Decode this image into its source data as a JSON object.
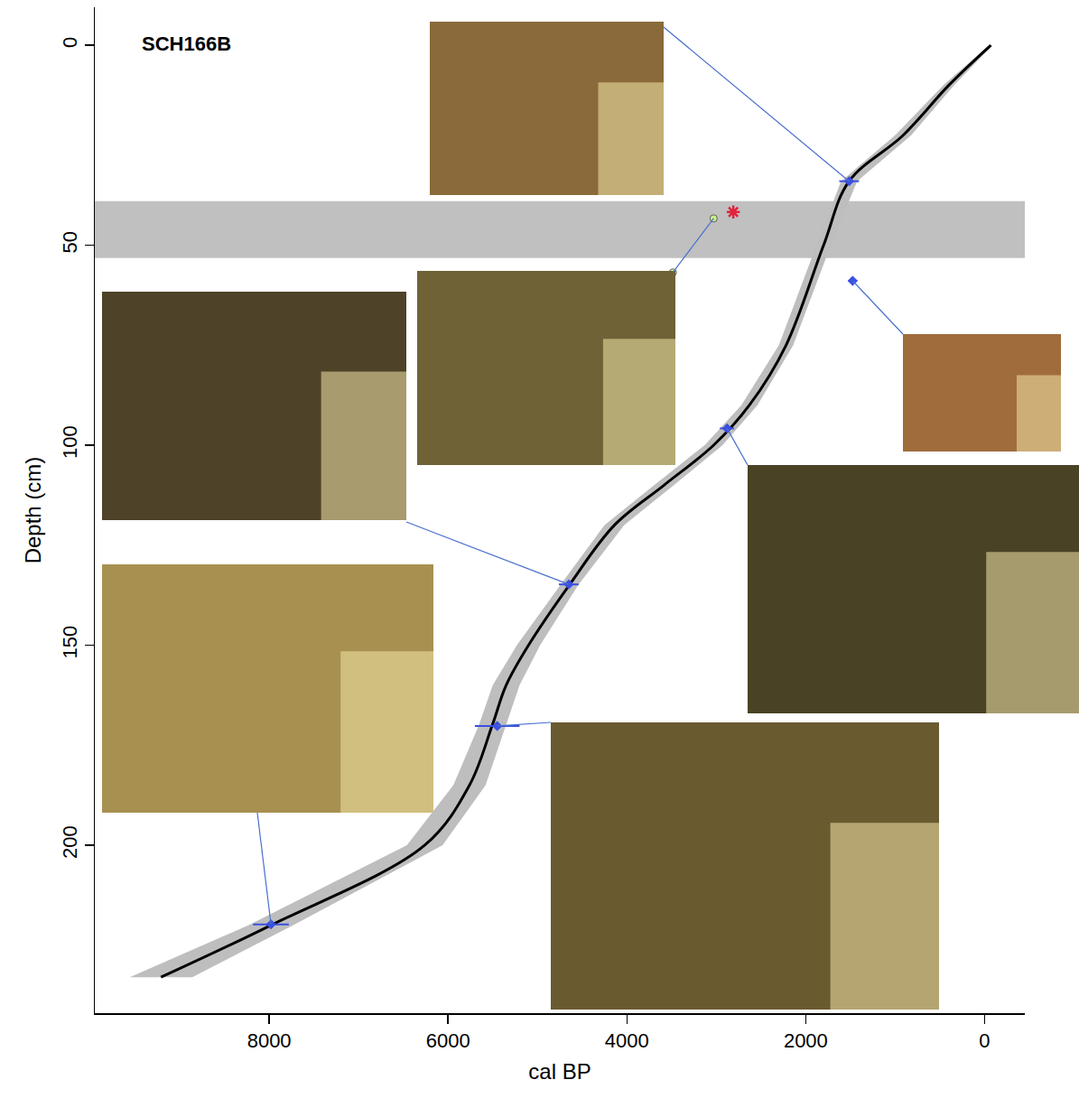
{
  "chart_data": {
    "type": "line",
    "title": "SCH166B",
    "x_label": "cal BP",
    "y_label": "Depth (cm)",
    "xlim": [
      9950,
      -450
    ],
    "ylim": [
      242,
      -9.5
    ],
    "xticks": [
      8000,
      6000,
      4000,
      2000,
      0
    ],
    "yticks": [
      0,
      50,
      100,
      150,
      200
    ],
    "grid": false,
    "series": [
      {
        "type": "hband",
        "y": [
          39,
          53.2
        ],
        "color": "#c0c0c0"
      },
      {
        "type": "band",
        "color": "#bebebe",
        "y": [
          0,
          10,
          22.5,
          34,
          50,
          75,
          90,
          100,
          110,
          120,
          135,
          150,
          160,
          170,
          185,
          200,
          220,
          233
        ],
        "x_min": [
          -90,
          340,
          820,
          1425,
          1720,
          2140,
          2540,
          2930,
          3475,
          4030,
          4545,
          4970,
          5200,
          5355,
          5580,
          6060,
          7730,
          8860
        ],
        "x_max": [
          -50,
          460,
          1000,
          1605,
          1880,
          2300,
          2720,
          3130,
          3695,
          4250,
          4745,
          5230,
          5500,
          5655,
          5940,
          6460,
          8230,
          9560
        ]
      },
      {
        "type": "line",
        "color": "#000000",
        "y": [
          0,
          10,
          22.5,
          34,
          50,
          75,
          90,
          100,
          110,
          120,
          135,
          150,
          160,
          170,
          185,
          200,
          220,
          233
        ],
        "x": [
          -70,
          400,
          910,
          1515,
          1800,
          2220,
          2630,
          3030,
          3585,
          4140,
          4645,
          5100,
          5350,
          5505,
          5760,
          6260,
          7980,
          9210
        ]
      },
      {
        "type": "scatter",
        "color": "#3b4fe0",
        "marker": "diamond",
        "x": [
          1515,
          1475,
          2880,
          4650,
          5450,
          7980
        ],
        "y": [
          34,
          58.9,
          95.8,
          134.8,
          170.2,
          219.8
        ],
        "error_x": [
          110,
          50,
          80,
          110,
          250,
          200
        ]
      },
      {
        "type": "scatter",
        "color": "#e0223a",
        "marker": "asterisk",
        "x": [
          2810
        ],
        "y": [
          41.7
        ]
      },
      {
        "type": "scatter",
        "color": "#c8ec8c",
        "marker": "circle",
        "x": [
          3030,
          3485
        ],
        "y": [
          43.3,
          56.8
        ]
      }
    ]
  }
}
